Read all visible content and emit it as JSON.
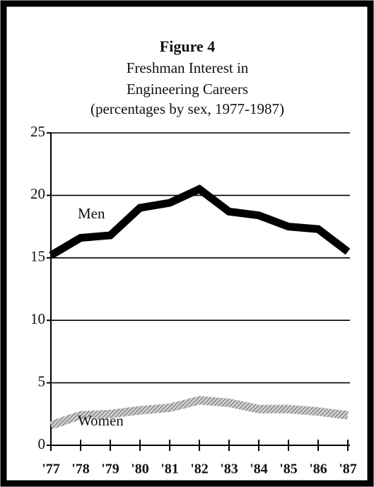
{
  "chart_data": {
    "type": "line",
    "title": "Figure 4",
    "subtitle": [
      "Freshman Interest in",
      "Engineering Careers",
      "(percentages by sex, 1977-1987)"
    ],
    "categories": [
      "'77",
      "'78",
      "'79",
      "'80",
      "'81",
      "'82",
      "'83",
      "'84",
      "'85",
      "'86",
      "'87"
    ],
    "series": [
      {
        "name": "Men",
        "color": "#000000",
        "values": [
          15.2,
          16.6,
          16.8,
          19.0,
          19.4,
          20.5,
          18.7,
          18.4,
          17.5,
          17.3,
          15.5
        ]
      },
      {
        "name": "Women",
        "color": "#9a9a9a",
        "values": [
          1.6,
          2.4,
          2.5,
          2.8,
          3.0,
          3.6,
          3.4,
          2.9,
          2.9,
          2.7,
          2.4
        ]
      }
    ],
    "ylim": [
      0,
      25
    ],
    "yticks": [
      0,
      5,
      10,
      15,
      20,
      25
    ],
    "grid": true
  }
}
